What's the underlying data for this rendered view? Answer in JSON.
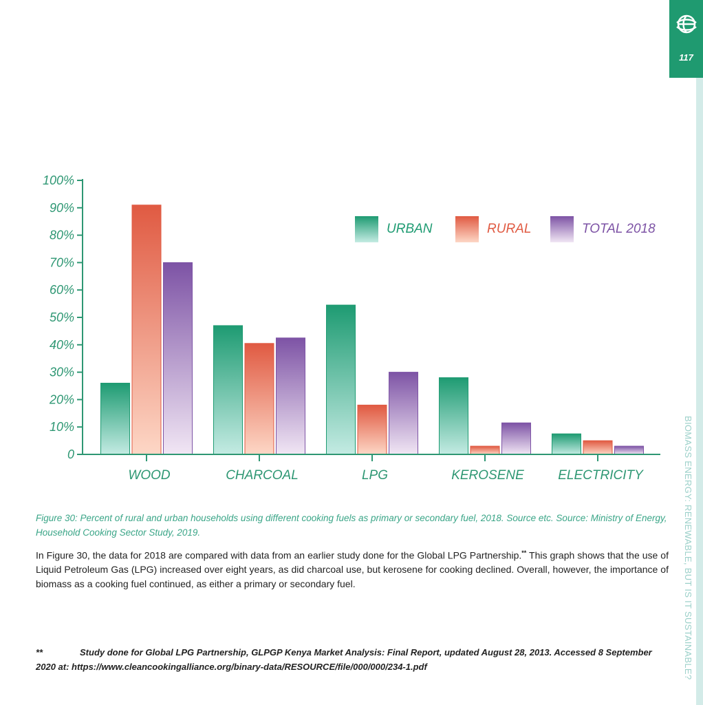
{
  "page": {
    "number": "117",
    "side_title": "BIOMASS ENERGY: RENEWABLE, BUT IS IT SUSTAINABLE?",
    "logo_icon": "globe-logo-icon",
    "tab_color": "#1f9a70"
  },
  "chart_data": {
    "type": "bar",
    "categories": [
      "WOOD",
      "CHARCOAL",
      "LPG",
      "KEROSENE",
      "ELECTRICITY"
    ],
    "series": [
      {
        "name": "URBAN",
        "values": [
          26,
          47,
          54.5,
          28,
          7.5
        ],
        "color_top": "#1e9b72",
        "color_bottom": "#c4ebe3"
      },
      {
        "name": "RURAL",
        "values": [
          91,
          40.5,
          18,
          3,
          5
        ],
        "color_top": "#e05a42",
        "color_bottom": "#fdd7c6"
      },
      {
        "name": "TOTAL 2018",
        "values": [
          70,
          42.5,
          30,
          11.5,
          3
        ],
        "color_top": "#7d53a5",
        "color_bottom": "#f1e6f4"
      }
    ],
    "y_ticks": [
      "100%",
      "90%",
      "80%",
      "70%",
      "60%",
      "50%",
      "40%",
      "30%",
      "20%",
      "10%",
      "0"
    ],
    "ylim": [
      0,
      100
    ],
    "legend_position": "top-right",
    "grid": false,
    "axis_color": "#2e9773"
  },
  "caption": "Figure 30: Percent of rural and urban households using different cooking fuels as primary or secondary fuel, 2018.  Source etc. Source: Ministry of Energy, Household Cooking Sector Study, 2019.",
  "body": {
    "text_before": "In Figure 30, the data for 2018 are compared with data from an earlier study done for the Global LPG Partnership.",
    "superscript": "**",
    "text_after": "  This graph shows that the use of Liquid Petroleum Gas (LPG) increased over eight years, as did charcoal use, but kerosene for cooking declined.  Overall, however, the importance of biomass as a cooking fuel continued, as either a primary or secondary fuel."
  },
  "footnote": {
    "mark": "**",
    "text": "Study done for Global LPG Partnership, GLPGP Kenya Market Analysis: Final Report, updated August 28, 2013.  Accessed 8 September 2020 at: https://www.cleancookingalliance.org/binary-data/RESOURCE/file/000/000/234-1.pdf"
  }
}
